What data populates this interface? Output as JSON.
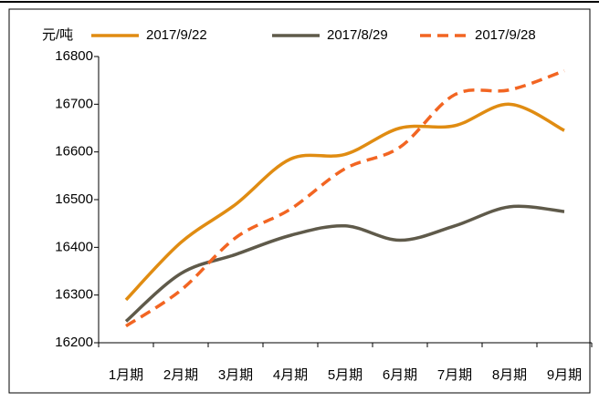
{
  "chart_data": {
    "type": "line",
    "y_unit": "元/吨",
    "categories": [
      "1月期",
      "2月期",
      "3月期",
      "4月期",
      "5月期",
      "6月期",
      "7月期",
      "8月期",
      "9月期"
    ],
    "series": [
      {
        "name": "2017/9/22",
        "color": "#E08C12",
        "dash": false,
        "values": [
          16290,
          16410,
          16490,
          16585,
          16595,
          16650,
          16655,
          16700,
          16645
        ]
      },
      {
        "name": "2017/8/29",
        "color": "#5F5A4A",
        "dash": false,
        "values": [
          16245,
          16345,
          16385,
          16425,
          16445,
          16415,
          16445,
          16485,
          16475
        ]
      },
      {
        "name": "2017/9/28",
        "color": "#F26522",
        "dash": true,
        "values": [
          16235,
          16310,
          16420,
          16480,
          16565,
          16610,
          16720,
          16730,
          16770
        ]
      }
    ],
    "ylim": [
      16200,
      16800
    ],
    "yticks": [
      16200,
      16300,
      16400,
      16500,
      16600,
      16700,
      16800
    ]
  }
}
